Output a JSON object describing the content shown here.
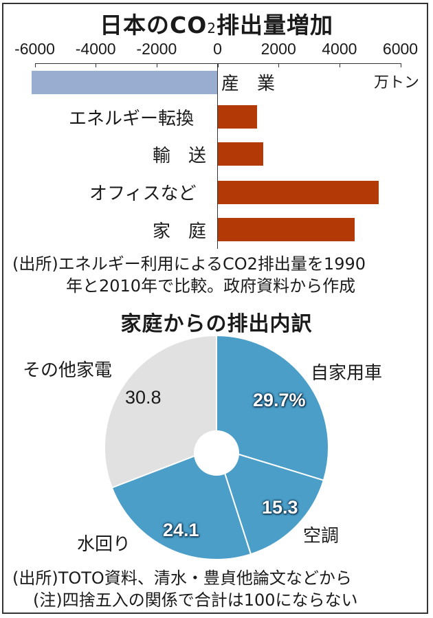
{
  "colors": {
    "negative_bar": "#98adcf",
    "positive_bar": "#b33a06",
    "pie_blue": "#4a9ec8",
    "pie_gray": "#e1e1e1",
    "frame": "#333333"
  },
  "bar_chart": {
    "title_main": "日本のCO",
    "title_sub": "2",
    "title_end": "排出量増加",
    "unit": "万トン",
    "ticks": [
      "-6000",
      "-4000",
      "-2000",
      "0",
      "2000",
      "4000",
      "6000"
    ],
    "note_line1": "(出所)エネルギー利用によるCO2排出量を1990",
    "note_line2": "年と2010年で比較。政府資料から作成",
    "categories": [
      "産　業",
      "エネルギー転換",
      "輸　送",
      "オフィスなど",
      "家　庭"
    ]
  },
  "pie_chart": {
    "title": "家庭からの排出内訳",
    "slices": [
      {
        "label": "自家用車",
        "value_text": "29.7%"
      },
      {
        "label": "空調",
        "value_text": "15.3"
      },
      {
        "label": "水回り",
        "value_text": "24.1"
      },
      {
        "label": "その他家電",
        "value_text": "30.8"
      }
    ],
    "note_line1": "(出所)TOTO資料、清水・豊貞他論文などから",
    "note_line2": "(注)四捨五入の関係で合計は100にならない"
  },
  "chart_data": [
    {
      "type": "bar",
      "orientation": "horizontal",
      "title": "日本のCO2排出量増加",
      "categories": [
        "産業",
        "エネルギー転換",
        "輸送",
        "オフィスなど",
        "家庭"
      ],
      "values": [
        -6100,
        1300,
        1490,
        5290,
        4500
      ],
      "xlabel": "万トン",
      "xlim": [
        -6000,
        6000
      ],
      "xticks": [
        -6000,
        -4000,
        -2000,
        0,
        2000,
        4000,
        6000
      ],
      "grid": false,
      "colors": [
        "#98adcf",
        "#b33a06",
        "#b33a06",
        "#b33a06",
        "#b33a06"
      ],
      "source_note": "(出所)エネルギー利用によるCO2排出量を1990年と2010年で比較。政府資料から作成"
    },
    {
      "type": "pie",
      "donut": true,
      "title": "家庭からの排出内訳",
      "categories": [
        "自家用車",
        "空調",
        "水回り",
        "その他家電"
      ],
      "values": [
        29.7,
        15.3,
        24.1,
        30.8
      ],
      "unit": "%",
      "colors": [
        "#4a9ec8",
        "#4a9ec8",
        "#4a9ec8",
        "#e1e1e1"
      ],
      "source_note": "(出所)TOTO資料、清水・豊貞他論文などから",
      "footnote": "(注)四捨五入の関係で合計は100にならない"
    }
  ]
}
